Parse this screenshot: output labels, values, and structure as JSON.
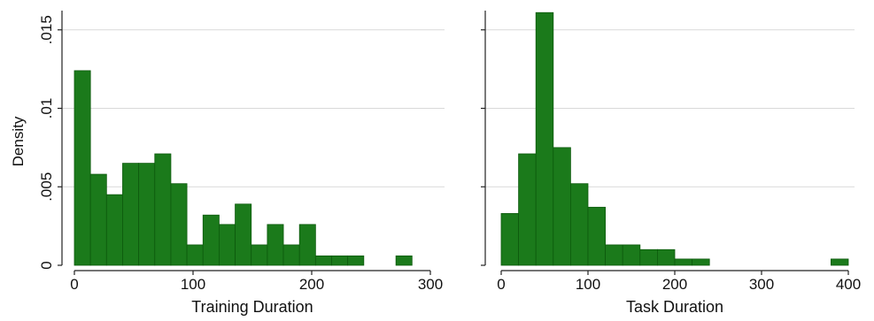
{
  "chart_data": [
    {
      "type": "bar",
      "title": "",
      "xlabel": "Training Duration",
      "ylabel": "Density",
      "xlim": [
        0,
        300
      ],
      "ylim": [
        0,
        0.016
      ],
      "xticks": [
        0,
        100,
        200,
        300
      ],
      "xtick_labels": [
        "0",
        "100",
        "200",
        "300"
      ],
      "yticks": [
        0,
        0.005,
        0.01,
        0.015
      ],
      "ytick_labels": [
        "0",
        ".005",
        ".01",
        ".015"
      ],
      "grid": true,
      "bin_width": 13.55,
      "bins": [
        {
          "x0": 0,
          "density": 0.0124
        },
        {
          "x0": 13.55,
          "density": 0.0058
        },
        {
          "x0": 27.1,
          "density": 0.0045
        },
        {
          "x0": 40.65,
          "density": 0.0065
        },
        {
          "x0": 54.2,
          "density": 0.0065
        },
        {
          "x0": 67.75,
          "density": 0.0071
        },
        {
          "x0": 81.3,
          "density": 0.0052
        },
        {
          "x0": 94.85,
          "density": 0.0013
        },
        {
          "x0": 108.4,
          "density": 0.0032
        },
        {
          "x0": 121.95,
          "density": 0.0026
        },
        {
          "x0": 135.5,
          "density": 0.0039
        },
        {
          "x0": 149.05,
          "density": 0.0013
        },
        {
          "x0": 162.6,
          "density": 0.0026
        },
        {
          "x0": 176.15,
          "density": 0.0013
        },
        {
          "x0": 189.7,
          "density": 0.0026
        },
        {
          "x0": 203.25,
          "density": 0.0006
        },
        {
          "x0": 216.8,
          "density": 0.0006
        },
        {
          "x0": 230.35,
          "density": 0.0006
        },
        {
          "x0": 243.9,
          "density": 0.0
        },
        {
          "x0": 257.45,
          "density": 0.0
        },
        {
          "x0": 271.0,
          "density": 0.0006
        }
      ]
    },
    {
      "type": "bar",
      "title": "",
      "xlabel": "Task Duration",
      "ylabel": "",
      "xlim": [
        0,
        400
      ],
      "ylim": [
        0,
        0.016
      ],
      "xticks": [
        0,
        100,
        200,
        300,
        400
      ],
      "xtick_labels": [
        "0",
        "100",
        "200",
        "300",
        "400"
      ],
      "yticks": [
        0,
        0.005,
        0.01,
        0.015
      ],
      "ytick_labels": [],
      "grid": true,
      "bin_width": 20,
      "bins": [
        {
          "x0": 0,
          "density": 0.0033
        },
        {
          "x0": 20,
          "density": 0.0071
        },
        {
          "x0": 40,
          "density": 0.0161
        },
        {
          "x0": 60,
          "density": 0.0075
        },
        {
          "x0": 80,
          "density": 0.0052
        },
        {
          "x0": 100,
          "density": 0.0037
        },
        {
          "x0": 120,
          "density": 0.0013
        },
        {
          "x0": 140,
          "density": 0.0013
        },
        {
          "x0": 160,
          "density": 0.001
        },
        {
          "x0": 180,
          "density": 0.001
        },
        {
          "x0": 200,
          "density": 0.0004
        },
        {
          "x0": 220,
          "density": 0.0004
        },
        {
          "x0": 240,
          "density": 0.0
        },
        {
          "x0": 260,
          "density": 0.0
        },
        {
          "x0": 280,
          "density": 0.0
        },
        {
          "x0": 300,
          "density": 0.0
        },
        {
          "x0": 320,
          "density": 0.0
        },
        {
          "x0": 340,
          "density": 0.0
        },
        {
          "x0": 360,
          "density": 0.0
        },
        {
          "x0": 380,
          "density": 0.0004
        }
      ]
    }
  ],
  "colors": {
    "bar_fill": "#1b7a1b",
    "bar_stroke": "#0d5a0d",
    "grid": "#d9d9d9",
    "axis": "#222222"
  }
}
